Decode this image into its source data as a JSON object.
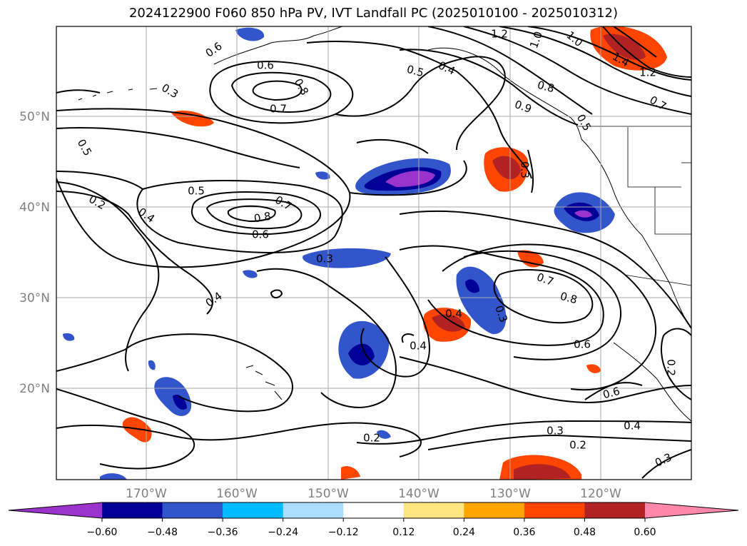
{
  "title": "2024122900 F060 850 hPa PV, IVT Landfall PC (2025010100 - 2025010312)",
  "map": {
    "lon_ticks": [
      "170°W",
      "160°W",
      "150°W",
      "140°W",
      "130°W",
      "120°W"
    ],
    "lat_ticks": [
      "50°N",
      "40°N",
      "30°N",
      "20°N"
    ],
    "lon_range": [
      -180,
      -110
    ],
    "lat_range": [
      10,
      60
    ],
    "grid": true
  },
  "contour_labels": [
    "0.6",
    "0.6",
    "0.8",
    "0.7",
    "0.5",
    "0.5",
    "0.3",
    "0.4",
    "0.2",
    "0.4",
    "0.7",
    "0.8",
    "0.6",
    "0.5",
    "0.3",
    "0.4",
    "1.2",
    "1.0",
    "1.0",
    "1.4",
    "1.2",
    "0.8",
    "0.7",
    "0.5",
    "0.4",
    "0.9",
    "0.3",
    "0.7",
    "0.8",
    "0.6",
    "0.6",
    "0.4",
    "0.3",
    "0.2",
    "0.2",
    "0.3",
    "0.2",
    "0.4",
    "0.3"
  ],
  "colorbar": {
    "ticks": [
      "−0.60",
      "−0.48",
      "−0.36",
      "−0.24",
      "−0.12",
      "0.12",
      "0.24",
      "0.36",
      "0.48",
      "0.60"
    ],
    "colors": [
      "#9933cc",
      "#000099",
      "#3355cc",
      "#00bbff",
      "#aaddff",
      "#ffffff",
      "#ffe680",
      "#ffa500",
      "#ff4500",
      "#b22222",
      "#ff88aa"
    ]
  }
}
